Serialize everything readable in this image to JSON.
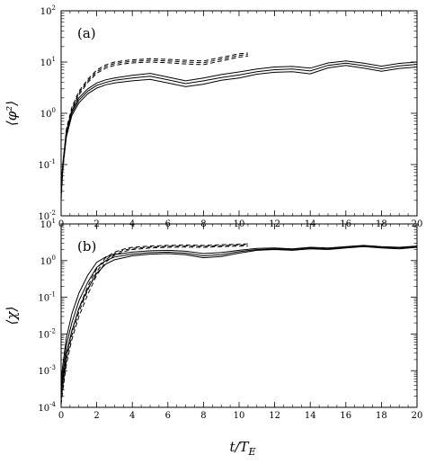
{
  "chart_data": [
    {
      "type": "line",
      "panel_label": "(a)",
      "ylabel": "⟨φ²⟩",
      "xlabel": "",
      "xlim": [
        0,
        20
      ],
      "ylim": [
        0.01,
        100
      ],
      "yscale": "log",
      "x_ticks": [
        0,
        2,
        4,
        6,
        8,
        10,
        12,
        14,
        16,
        18,
        20
      ],
      "y_ticks": [
        0.01,
        0.1,
        1,
        10,
        100
      ],
      "y_tick_labels": [
        {
          "base": "10",
          "exp": "-2"
        },
        {
          "base": "10",
          "exp": "-1"
        },
        {
          "base": "10",
          "exp": "0"
        },
        {
          "base": "10",
          "exp": "1"
        },
        {
          "base": "10",
          "exp": "2"
        }
      ],
      "series": [
        {
          "style": "solid",
          "x": [
            0,
            0.1,
            0.3,
            0.6,
            1,
            1.5,
            2,
            2.5,
            3,
            4,
            5,
            6,
            7,
            8,
            9,
            10,
            11,
            12,
            13,
            14,
            15,
            16,
            17,
            18,
            19,
            20
          ],
          "y": [
            0.03,
            0.09,
            0.35,
            0.9,
            1.6,
            2.4,
            3.1,
            3.6,
            3.9,
            4.3,
            4.6,
            3.9,
            3.3,
            3.7,
            4.4,
            4.9,
            5.8,
            6.3,
            6.5,
            5.9,
            7.7,
            8.6,
            7.6,
            6.6,
            7.5,
            8.0
          ]
        },
        {
          "style": "solid",
          "x": [
            0,
            0.1,
            0.3,
            0.6,
            1,
            1.5,
            2,
            2.5,
            3,
            4,
            5,
            6,
            7,
            8,
            9,
            10,
            11,
            12,
            13,
            14,
            15,
            16,
            17,
            18,
            19,
            20
          ],
          "y": [
            0.035,
            0.1,
            0.4,
            1.0,
            1.8,
            2.7,
            3.5,
            4.0,
            4.4,
            4.9,
            5.3,
            4.5,
            3.8,
            4.3,
            5.0,
            5.6,
            6.5,
            7.1,
            7.3,
            6.7,
            8.6,
            9.5,
            8.5,
            7.4,
            8.4,
            9.0
          ]
        },
        {
          "style": "solid",
          "x": [
            0,
            0.1,
            0.3,
            0.6,
            1,
            1.5,
            2,
            2.5,
            3,
            4,
            5,
            6,
            7,
            8,
            9,
            10,
            11,
            12,
            13,
            14,
            15,
            16,
            17,
            18,
            19,
            20
          ],
          "y": [
            0.04,
            0.11,
            0.45,
            1.1,
            2.0,
            3.0,
            3.9,
            4.5,
            4.9,
            5.5,
            6.0,
            5.1,
            4.3,
            4.9,
            5.7,
            6.4,
            7.3,
            8.0,
            8.2,
            7.6,
            9.6,
            10.5,
            9.5,
            8.3,
            9.4,
            10.0
          ]
        },
        {
          "style": "dashed",
          "x": [
            0,
            0.1,
            0.3,
            0.6,
            1,
            1.5,
            2,
            2.5,
            3,
            3.5,
            4,
            5,
            6,
            7,
            8,
            9,
            10,
            10.5
          ],
          "y": [
            0.02,
            0.08,
            0.4,
            1.1,
            2.3,
            4.0,
            6.0,
            7.6,
            8.6,
            9.2,
            9.6,
            10.0,
            9.7,
            9.2,
            8.9,
            10.5,
            12.5,
            13.0
          ]
        },
        {
          "style": "dashed",
          "x": [
            0,
            0.1,
            0.3,
            0.6,
            1,
            1.5,
            2,
            2.5,
            3,
            3.5,
            4,
            5,
            6,
            7,
            8,
            9,
            10,
            10.5
          ],
          "y": [
            0.022,
            0.09,
            0.45,
            1.2,
            2.5,
            4.3,
            6.5,
            8.2,
            9.3,
            9.9,
            10.3,
            10.8,
            10.5,
            10.0,
            9.7,
            11.4,
            13.5,
            14.0
          ]
        },
        {
          "style": "dashed",
          "x": [
            0,
            0.1,
            0.3,
            0.6,
            1,
            1.5,
            2,
            2.5,
            3,
            3.5,
            4,
            5,
            6,
            7,
            8,
            9,
            10,
            10.5
          ],
          "y": [
            0.024,
            0.1,
            0.5,
            1.3,
            2.7,
            4.6,
            7.0,
            8.8,
            10.0,
            10.6,
            11.0,
            11.6,
            11.3,
            10.8,
            10.5,
            12.3,
            14.5,
            15.0
          ]
        }
      ]
    },
    {
      "type": "line",
      "panel_label": "(b)",
      "ylabel": "⟨χ⟩",
      "xlabel": "t/T_E",
      "xlim": [
        0,
        20
      ],
      "ylim": [
        0.0001,
        10
      ],
      "yscale": "log",
      "x_ticks": [
        0,
        2,
        4,
        6,
        8,
        10,
        12,
        14,
        16,
        18,
        20
      ],
      "y_ticks": [
        0.0001,
        0.001,
        0.01,
        0.1,
        1,
        10
      ],
      "y_tick_labels": [
        {
          "base": "10",
          "exp": "-4"
        },
        {
          "base": "10",
          "exp": "-3"
        },
        {
          "base": "10",
          "exp": "-2"
        },
        {
          "base": "10",
          "exp": "-1"
        },
        {
          "base": "10",
          "exp": "0"
        },
        {
          "base": "10",
          "exp": "1"
        }
      ],
      "series": [
        {
          "style": "solid",
          "x": [
            0,
            0.1,
            0.3,
            0.6,
            1,
            1.5,
            2,
            2.5,
            3,
            4,
            5,
            6,
            7,
            8,
            9,
            10,
            11,
            12,
            13,
            14,
            15,
            16,
            17,
            18,
            19,
            20
          ],
          "y": [
            0.0002,
            0.0006,
            0.003,
            0.012,
            0.05,
            0.17,
            0.45,
            0.8,
            1.05,
            1.35,
            1.5,
            1.55,
            1.45,
            1.2,
            1.3,
            1.6,
            1.9,
            2.0,
            1.9,
            2.1,
            2.0,
            2.2,
            2.4,
            2.2,
            2.1,
            2.3
          ]
        },
        {
          "style": "solid",
          "x": [
            0,
            0.1,
            0.3,
            0.6,
            1,
            1.5,
            2,
            2.5,
            3,
            4,
            5,
            6,
            7,
            8,
            9,
            10,
            11,
            12,
            13,
            14,
            15,
            16,
            17,
            18,
            19,
            20
          ],
          "y": [
            0.0003,
            0.0009,
            0.005,
            0.02,
            0.08,
            0.26,
            0.65,
            1.0,
            1.25,
            1.5,
            1.65,
            1.7,
            1.6,
            1.35,
            1.45,
            1.75,
            2.0,
            2.1,
            2.0,
            2.2,
            2.1,
            2.3,
            2.5,
            2.3,
            2.2,
            2.4
          ]
        },
        {
          "style": "solid",
          "x": [
            0,
            0.1,
            0.3,
            0.6,
            1,
            1.5,
            2,
            2.5,
            3,
            4,
            5,
            6,
            7,
            8,
            9,
            10,
            11,
            12,
            13,
            14,
            15,
            16,
            17,
            18,
            19,
            20
          ],
          "y": [
            0.0005,
            0.0015,
            0.008,
            0.035,
            0.13,
            0.4,
            0.9,
            1.25,
            1.45,
            1.7,
            1.85,
            1.9,
            1.8,
            1.55,
            1.65,
            1.9,
            2.15,
            2.2,
            2.1,
            2.3,
            2.2,
            2.4,
            2.6,
            2.4,
            2.3,
            2.5
          ]
        },
        {
          "style": "dashed",
          "x": [
            0,
            0.1,
            0.3,
            0.6,
            1,
            1.5,
            2,
            2.5,
            3,
            3.5,
            4,
            5,
            6,
            7,
            8,
            9,
            10,
            10.5
          ],
          "y": [
            0.00012,
            0.0003,
            0.0015,
            0.007,
            0.03,
            0.12,
            0.4,
            0.9,
            1.4,
            1.75,
            2.0,
            2.2,
            2.3,
            2.35,
            2.3,
            2.4,
            2.5,
            2.5
          ]
        },
        {
          "style": "dashed",
          "x": [
            0,
            0.1,
            0.3,
            0.6,
            1,
            1.5,
            2,
            2.5,
            3,
            3.5,
            4,
            5,
            6,
            7,
            8,
            9,
            10,
            10.5
          ],
          "y": [
            0.00015,
            0.0004,
            0.002,
            0.009,
            0.04,
            0.16,
            0.5,
            1.05,
            1.55,
            1.9,
            2.15,
            2.35,
            2.45,
            2.5,
            2.45,
            2.55,
            2.65,
            2.7
          ]
        },
        {
          "style": "dashed",
          "x": [
            0,
            0.1,
            0.3,
            0.6,
            1,
            1.5,
            2,
            2.5,
            3,
            3.5,
            4,
            5,
            6,
            7,
            8,
            9,
            10,
            10.5
          ],
          "y": [
            0.0002,
            0.0005,
            0.0025,
            0.012,
            0.05,
            0.2,
            0.6,
            1.2,
            1.7,
            2.05,
            2.3,
            2.5,
            2.6,
            2.65,
            2.6,
            2.7,
            2.8,
            2.85
          ]
        }
      ]
    }
  ]
}
